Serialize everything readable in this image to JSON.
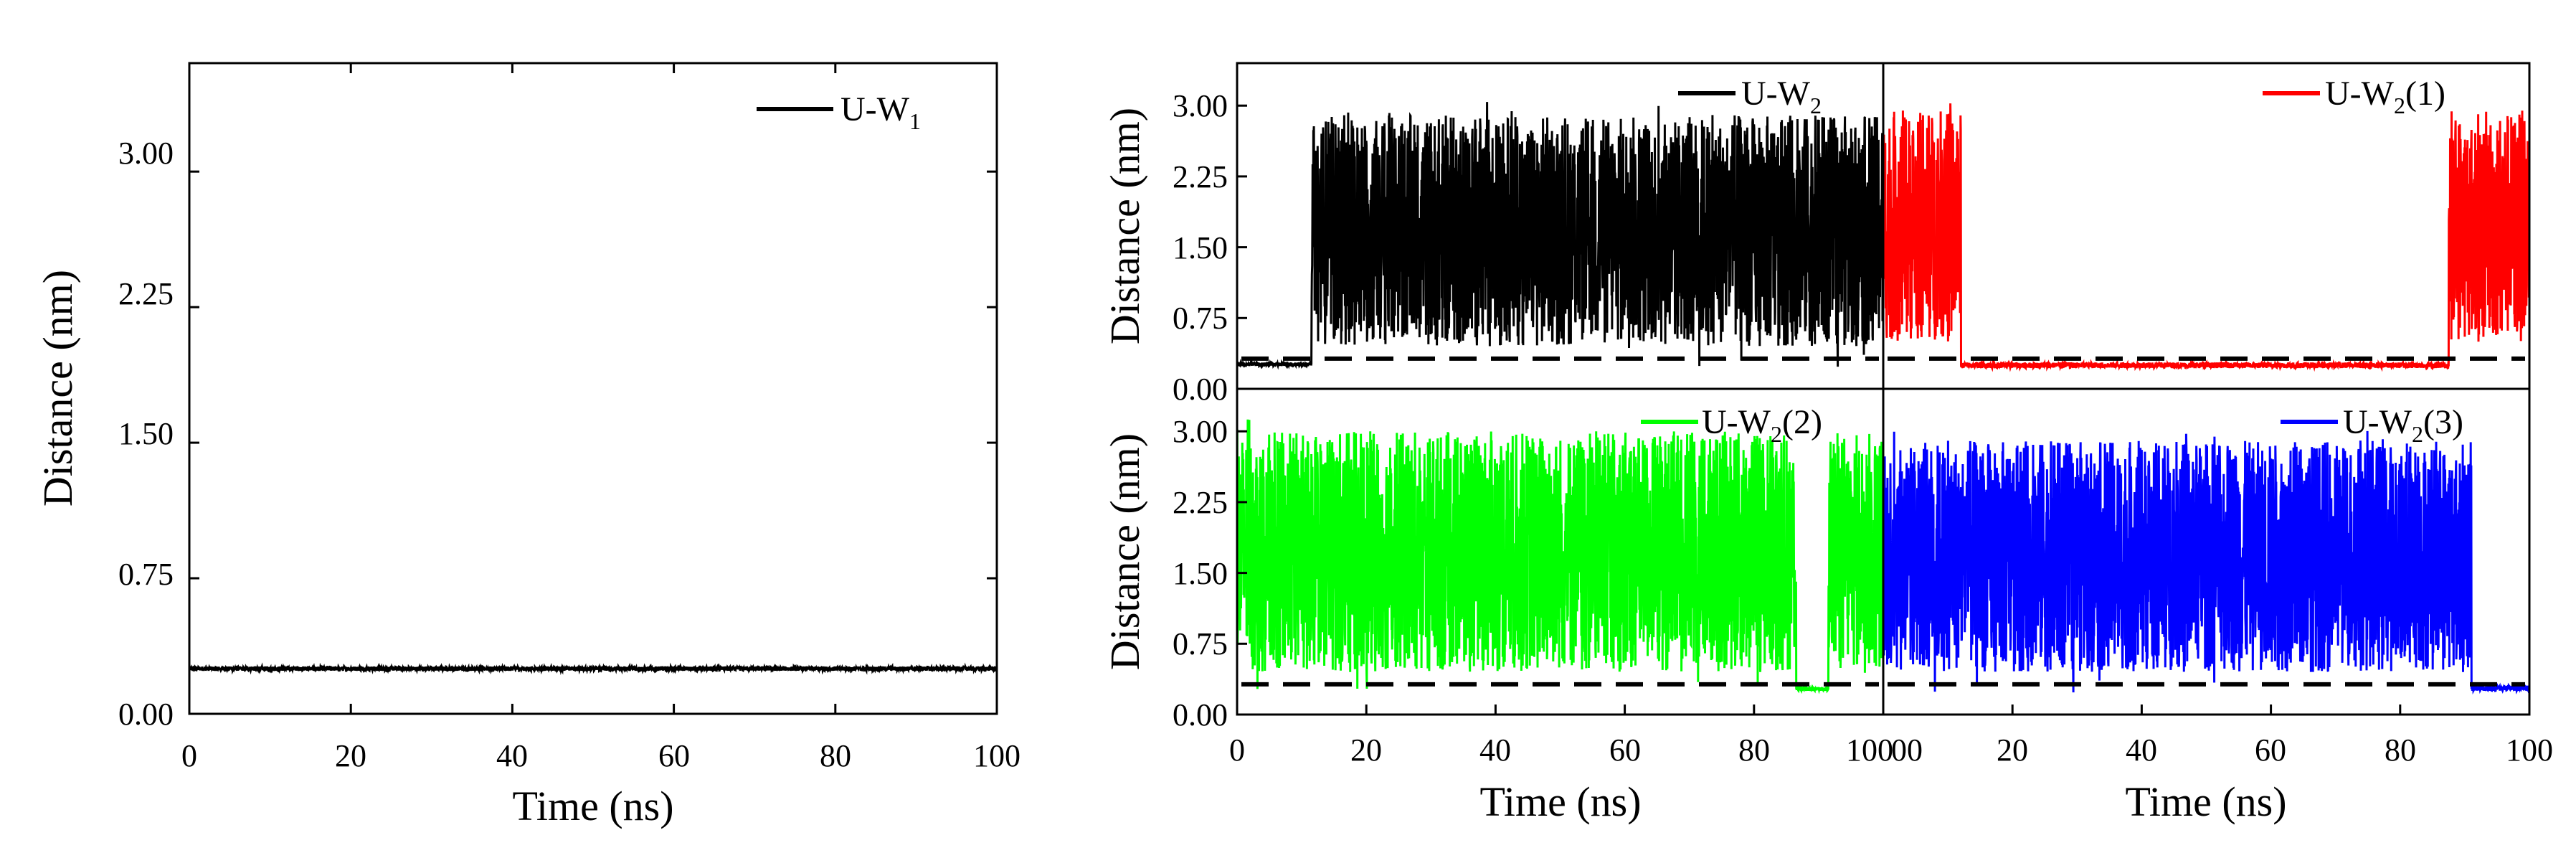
{
  "figure": {
    "left_panel": {
      "type": "line",
      "xlabel": "Time (ns)",
      "ylabel": "Distance (nm)",
      "xlim": [
        0,
        100
      ],
      "ylim": [
        0,
        3.6
      ],
      "xticks": [
        "0",
        "20",
        "40",
        "60",
        "80",
        "100"
      ],
      "yticks": [
        "0.00",
        "0.75",
        "1.50",
        "2.25",
        "3.00"
      ],
      "legend": "U-W",
      "legend_sub": "1",
      "legend_sup": "",
      "color": "#000000"
    },
    "right_panels": [
      {
        "type": "line",
        "ylabel": "Distance (nm)",
        "xlim": [
          0,
          100
        ],
        "ylim": [
          0,
          3.45
        ],
        "yticks": [
          "0.00",
          "0.75",
          "1.50",
          "2.25",
          "3.00"
        ],
        "legend": "U-W",
        "legend_sub": "2",
        "legend_sup": "",
        "color": "#000000"
      },
      {
        "type": "line",
        "xlim": [
          0,
          100
        ],
        "ylim": [
          0,
          3.45
        ],
        "legend": "U-W",
        "legend_sub": "2",
        "legend_sup": "(1)",
        "color": "#ff0000"
      },
      {
        "type": "line",
        "ylabel": "Distance (nm)",
        "xlabel": "Time (ns)",
        "xlim": [
          0,
          100
        ],
        "ylim": [
          0,
          3.45
        ],
        "yticks": [
          "0.00",
          "0.75",
          "1.50",
          "2.25",
          "3.00"
        ],
        "xticks": [
          "0",
          "20",
          "40",
          "60",
          "80",
          "100"
        ],
        "legend": "U-W",
        "legend_sub": "2",
        "legend_sup": "(2)",
        "color": "#00ff00"
      },
      {
        "type": "line",
        "xlabel": "Time (ns)",
        "xlim": [
          0,
          100
        ],
        "ylim": [
          0,
          3.45
        ],
        "xticks": [
          "00",
          "20",
          "40",
          "60",
          "80",
          "100"
        ],
        "legend": "U-W",
        "legend_sub": "2",
        "legend_sup": "(3)",
        "color": "#0000ff"
      }
    ]
  },
  "chart_data": [
    {
      "type": "line",
      "title": "",
      "xlabel": "Time (ns)",
      "ylabel": "Distance (nm)",
      "xlim": [
        0,
        100
      ],
      "ylim": [
        0,
        3.6
      ],
      "series": [
        {
          "name": "U-W1",
          "color": "#000000",
          "segments": [
            {
              "x0": 0,
              "x1": 100,
              "mean": 0.25,
              "noise": 0.012
            }
          ]
        }
      ]
    },
    {
      "type": "line",
      "title": "",
      "xlabel": "Time (ns)",
      "ylabel": "Distance (nm)",
      "xlim": [
        0,
        100
      ],
      "ylim": [
        0,
        3.45
      ],
      "reference_line_y": 0.32,
      "series": [
        {
          "name": "U-W2",
          "color": "#000000",
          "segments": [
            {
              "x0": 0,
              "x1": 11.5,
              "mean": 0.26,
              "noise": 0.02
            },
            {
              "x0": 11.5,
              "x1": 100,
              "low": 0.45,
              "high": 2.9
            }
          ]
        }
      ]
    },
    {
      "type": "line",
      "title": "",
      "xlabel": "Time (ns)",
      "ylabel": "Distance (nm)",
      "xlim": [
        0,
        100
      ],
      "ylim": [
        0,
        3.45
      ],
      "reference_line_y": 0.32,
      "series": [
        {
          "name": "U-W2(1)",
          "color": "#ff0000",
          "segments": [
            {
              "x0": 0,
              "x1": 12,
              "low": 0.5,
              "high": 2.95
            },
            {
              "x0": 12,
              "x1": 87.5,
              "mean": 0.25,
              "noise": 0.03
            },
            {
              "x0": 87.5,
              "x1": 100,
              "low": 0.5,
              "high": 2.95
            }
          ]
        }
      ]
    },
    {
      "type": "line",
      "title": "",
      "xlabel": "Time (ns)",
      "ylabel": "Distance (nm)",
      "xlim": [
        0,
        100
      ],
      "ylim": [
        0,
        3.45
      ],
      "reference_line_y": 0.32,
      "series": [
        {
          "name": "U-W2(2)",
          "color": "#00ff00",
          "segments": [
            {
              "x0": 0,
              "x1": 86.5,
              "low": 0.45,
              "high": 3.0
            },
            {
              "x0": 86.5,
              "x1": 91.5,
              "mean": 0.27,
              "noise": 0.02
            },
            {
              "x0": 91.5,
              "x1": 100,
              "low": 0.45,
              "high": 3.0
            }
          ]
        }
      ]
    },
    {
      "type": "line",
      "title": "",
      "xlabel": "Time (ns)",
      "ylabel": "Distance (nm)",
      "xlim": [
        0,
        100
      ],
      "ylim": [
        0,
        3.45
      ],
      "reference_line_y": 0.32,
      "series": [
        {
          "name": "U-W2(3)",
          "color": "#0000ff",
          "segments": [
            {
              "x0": 0,
              "x1": 91,
              "low": 0.45,
              "high": 2.9
            },
            {
              "x0": 91,
              "x1": 100,
              "mean": 0.28,
              "noise": 0.03
            }
          ]
        }
      ]
    }
  ]
}
